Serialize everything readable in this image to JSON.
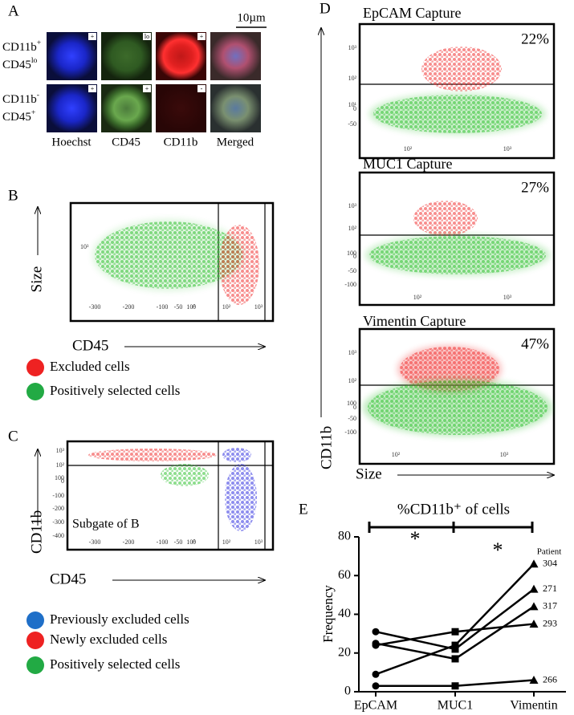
{
  "panel_a": {
    "label": "A",
    "scale_bar": "10µm",
    "rows": [
      {
        "marker1": {
          "base": "CD11b",
          "sup": "+"
        },
        "marker2": {
          "base": "CD45",
          "sup": "lo"
        },
        "badges": [
          "+",
          "lo",
          "+"
        ]
      },
      {
        "marker1": {
          "base": "CD11b",
          "sup": "-"
        },
        "marker2": {
          "base": "CD45",
          "sup": "+"
        },
        "badges": [
          "+",
          "+",
          "-"
        ]
      }
    ],
    "columns": [
      "Hoechst",
      "CD45",
      "CD11b",
      "Merged"
    ]
  },
  "panel_b": {
    "label": "B",
    "y_label": "Size",
    "x_label": "CD45",
    "yticks": [
      "10³"
    ],
    "xticks": [
      -300,
      -200,
      -100,
      -50,
      "10⁰",
      0,
      "10²",
      "10³"
    ],
    "legend": [
      {
        "name": "Excluded cells",
        "color": "#ee2222"
      },
      {
        "name": "Positively selected cells",
        "color": "#22aa44"
      }
    ]
  },
  "panel_c": {
    "label": "C",
    "y_label": "CD11b",
    "x_label": "CD45",
    "annotation": "Subgate of B",
    "yticks": [
      "10³",
      "10²",
      100,
      0,
      -100,
      -200,
      -300,
      -400
    ],
    "xticks": [
      -300,
      -200,
      -100,
      -50,
      "10⁰",
      0,
      "10²",
      "10³"
    ],
    "legend": [
      {
        "name": "Previously excluded cells",
        "color": "#1f6fc8"
      },
      {
        "name": "Newly excluded cells",
        "color": "#ee2222"
      },
      {
        "name": "Positively selected cells",
        "color": "#22aa44"
      }
    ]
  },
  "panel_d": {
    "label": "D",
    "y_label": "CD11b",
    "x_label": "Size",
    "plots": [
      {
        "title": "EpCAM Capture",
        "percent": "22%",
        "yticks": [
          "10³",
          "10²",
          "10¹",
          0,
          -50
        ],
        "xticks": [
          "10²",
          "10³"
        ]
      },
      {
        "title": "MUC1 Capture",
        "percent": "27%",
        "yticks": [
          "10³",
          "10²",
          100,
          0,
          -50,
          -100
        ],
        "xticks": [
          "10²",
          "10³"
        ]
      },
      {
        "title": "Vimentin Capture",
        "percent": "47%",
        "yticks": [
          "10³",
          "10²",
          100,
          0,
          -50,
          -100
        ],
        "xticks": [
          "10²",
          "10³"
        ]
      }
    ]
  },
  "chart_data": {
    "type": "line",
    "label": "E",
    "title": "%CD11b⁺ of cells",
    "y_label": "Frequency",
    "legend_title": "Patient",
    "categories": [
      "EpCAM",
      "MUC1",
      "Vimentin"
    ],
    "ylim": [
      0,
      80
    ],
    "yticks": [
      0,
      20,
      40,
      60,
      80
    ],
    "significance": [
      "*",
      "*"
    ],
    "color": "#000000",
    "series": [
      {
        "name": "304",
        "values": [
          9,
          24,
          66
        ]
      },
      {
        "name": "271",
        "values": [
          31,
          22,
          53
        ]
      },
      {
        "name": "317",
        "values": [
          25,
          17,
          44
        ]
      },
      {
        "name": "293",
        "values": [
          24,
          31,
          35
        ]
      },
      {
        "name": "266",
        "values": [
          3,
          3,
          6
        ]
      }
    ]
  }
}
